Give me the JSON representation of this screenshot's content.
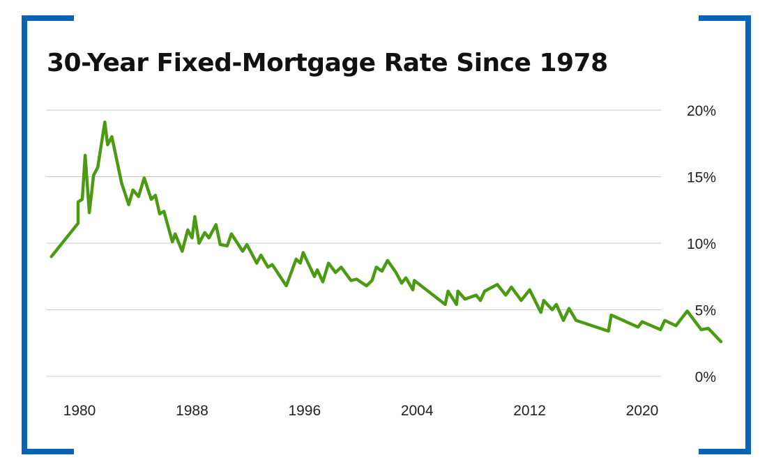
{
  "colors": {
    "bracket": "#0b63b4",
    "line": "#4a9b12",
    "grid": "#c8c8c8",
    "title": "#111111"
  },
  "chart_data": {
    "type": "line",
    "title": "30-Year Fixed-Mortgage Rate Since 1978",
    "xlabel": "",
    "ylabel": "",
    "xlim": [
      1978,
      2021
    ],
    "ylim": [
      0,
      20
    ],
    "y_axis_position": "right",
    "grid": true,
    "x_ticks": [
      {
        "value": 1980,
        "label": "1980"
      },
      {
        "value": 1988,
        "label": "1988"
      },
      {
        "value": 1996,
        "label": "1996"
      },
      {
        "value": 2004,
        "label": "2004"
      },
      {
        "value": 2012,
        "label": "2012"
      },
      {
        "value": 2020,
        "label": "2020"
      }
    ],
    "y_ticks": [
      {
        "value": 0,
        "label": "0%"
      },
      {
        "value": 5,
        "label": "5%"
      },
      {
        "value": 10,
        "label": "10%"
      },
      {
        "value": 15,
        "label": "15%"
      },
      {
        "value": 20,
        "label": "20%"
      }
    ],
    "series": [
      {
        "points": [
          [
            1978.0,
            9.0
          ],
          [
            1979.9,
            11.5
          ],
          [
            1979.9,
            13.1
          ],
          [
            1980.2,
            13.3
          ],
          [
            1980.4,
            16.6
          ],
          [
            1980.7,
            12.3
          ],
          [
            1981.0,
            15.1
          ],
          [
            1981.3,
            15.7
          ],
          [
            1981.8,
            19.1
          ],
          [
            1982.0,
            17.4
          ],
          [
            1982.3,
            18.0
          ],
          [
            1983.0,
            14.5
          ],
          [
            1983.5,
            12.9
          ],
          [
            1983.8,
            14.0
          ],
          [
            1984.2,
            13.5
          ],
          [
            1984.6,
            14.9
          ],
          [
            1985.1,
            13.3
          ],
          [
            1985.4,
            13.6
          ],
          [
            1985.7,
            12.2
          ],
          [
            1986.0,
            12.4
          ],
          [
            1986.6,
            10.1
          ],
          [
            1986.8,
            10.7
          ],
          [
            1987.3,
            9.4
          ],
          [
            1987.7,
            11.0
          ],
          [
            1988.0,
            10.4
          ],
          [
            1988.2,
            12.0
          ],
          [
            1988.5,
            10.0
          ],
          [
            1988.9,
            10.8
          ],
          [
            1989.2,
            10.4
          ],
          [
            1989.7,
            11.4
          ],
          [
            1990.0,
            9.9
          ],
          [
            1990.5,
            9.8
          ],
          [
            1990.8,
            10.7
          ],
          [
            1991.6,
            9.4
          ],
          [
            1991.9,
            9.9
          ],
          [
            1992.6,
            8.5
          ],
          [
            1992.9,
            9.1
          ],
          [
            1993.4,
            8.2
          ],
          [
            1993.7,
            8.4
          ],
          [
            1994.7,
            6.8
          ],
          [
            1995.4,
            8.8
          ],
          [
            1995.7,
            8.5
          ],
          [
            1995.9,
            9.3
          ],
          [
            1996.7,
            7.5
          ],
          [
            1996.9,
            8.0
          ],
          [
            1997.3,
            7.1
          ],
          [
            1997.7,
            8.5
          ],
          [
            1998.2,
            7.8
          ],
          [
            1998.6,
            8.2
          ],
          [
            1999.3,
            7.2
          ],
          [
            1999.7,
            7.3
          ],
          [
            2000.4,
            6.8
          ],
          [
            2000.8,
            7.2
          ],
          [
            2001.1,
            8.2
          ],
          [
            2001.5,
            7.9
          ],
          [
            2001.9,
            8.7
          ],
          [
            2002.5,
            7.8
          ],
          [
            2002.9,
            7.0
          ],
          [
            2003.2,
            7.4
          ],
          [
            2003.7,
            6.5
          ],
          [
            2003.8,
            7.2
          ],
          [
            2006.0,
            5.4
          ],
          [
            2006.2,
            6.4
          ],
          [
            2006.8,
            5.4
          ],
          [
            2006.9,
            6.4
          ],
          [
            2007.4,
            5.8
          ],
          [
            2008.2,
            6.1
          ],
          [
            2008.5,
            5.7
          ],
          [
            2008.8,
            6.4
          ],
          [
            2009.7,
            6.9
          ],
          [
            2010.3,
            6.1
          ],
          [
            2010.7,
            6.7
          ],
          [
            2011.4,
            5.7
          ],
          [
            2012.0,
            6.5
          ],
          [
            2012.8,
            4.8
          ],
          [
            2013.0,
            5.7
          ],
          [
            2013.6,
            5.0
          ],
          [
            2013.9,
            5.4
          ],
          [
            2014.4,
            4.2
          ],
          [
            2014.8,
            5.1
          ],
          [
            2015.3,
            4.2
          ],
          [
            2017.6,
            3.4
          ],
          [
            2017.8,
            4.6
          ],
          [
            2019.7,
            3.7
          ],
          [
            2020.0,
            4.1
          ],
          [
            2021.3,
            3.5
          ],
          [
            2021.6,
            4.2
          ],
          [
            2022.4,
            3.8
          ],
          [
            2023.2,
            4.9
          ],
          [
            2024.2,
            3.5
          ],
          [
            2024.7,
            3.6
          ],
          [
            2025.6,
            2.6
          ]
        ]
      }
    ]
  }
}
